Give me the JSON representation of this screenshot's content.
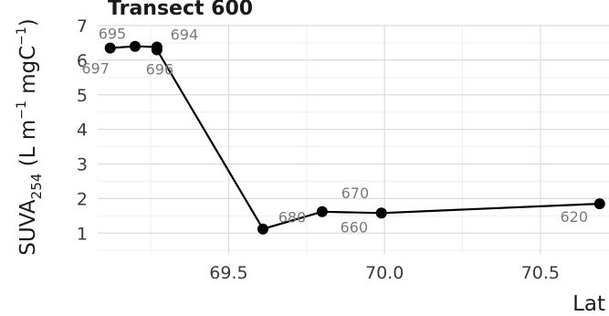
{
  "chart_data": {
    "type": "line",
    "title": "Transect 600",
    "xlabel": "Lat",
    "ylabel": {
      "base": "SUVA",
      "subscript": "254",
      "unit_open": " (L m",
      "exp1": "−1",
      "unit_mid": " mgC",
      "exp2": "−1",
      "unit_close": ")"
    },
    "xlim": [
      69.08,
      70.72
    ],
    "ylim": [
      0.4,
      7.0
    ],
    "x_ticks": [
      69.5,
      70.0,
      70.5
    ],
    "x_tick_labels": [
      "69.5",
      "70.0",
      "70.5"
    ],
    "y_ticks": [
      1,
      2,
      3,
      4,
      5,
      6,
      7
    ],
    "y_tick_labels": [
      "1",
      "2",
      "3",
      "4",
      "5",
      "6",
      "7"
    ],
    "grid": true,
    "series": [
      {
        "points": [
          {
            "x": 69.12,
            "y": 6.35,
            "label": "697"
          },
          {
            "x": 69.2,
            "y": 6.4,
            "label": "695"
          },
          {
            "x": 69.27,
            "y": 6.38,
            "label": "694"
          },
          {
            "x": 69.27,
            "y": 6.3,
            "label": "696"
          },
          {
            "x": 69.61,
            "y": 1.12,
            "label": "680"
          },
          {
            "x": 69.8,
            "y": 1.62,
            "label": "670"
          },
          {
            "x": 69.99,
            "y": 1.58,
            "label": "660"
          },
          {
            "x": 70.69,
            "y": 1.85,
            "label": "620"
          }
        ]
      }
    ]
  }
}
